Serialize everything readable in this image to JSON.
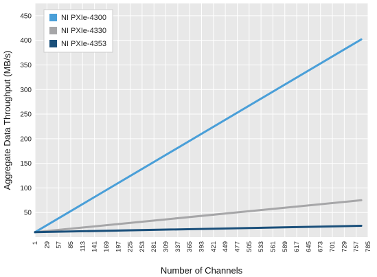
{
  "chart_data": {
    "type": "line",
    "title": "",
    "xlabel": "Number of Channels",
    "ylabel": "Aggregate Data Throughput (MB/s)",
    "x_ticks": [
      1,
      29,
      57,
      85,
      113,
      141,
      169,
      197,
      225,
      253,
      281,
      309,
      337,
      365,
      393,
      421,
      449,
      477,
      505,
      533,
      561,
      589,
      617,
      645,
      673,
      701,
      729,
      757,
      785
    ],
    "y_ticks": [
      50,
      100,
      150,
      200,
      250,
      300,
      350,
      400,
      450
    ],
    "xlim": [
      1,
      785
    ],
    "ylim": [
      0,
      475
    ],
    "grid": {
      "horizontal": true,
      "vertical": true,
      "background": "#e8e8e8"
    },
    "legend_position": "top-left",
    "series": [
      {
        "name": "NI PXIe-4300",
        "color": "#4a9fd8",
        "x": [
          1,
          769
        ],
        "y": [
          10,
          402
        ]
      },
      {
        "name": "NI PXIe-4330",
        "color": "#a6a6a8",
        "x": [
          1,
          769
        ],
        "y": [
          10,
          75
        ]
      },
      {
        "name": "NI PXIe-4353",
        "color": "#1a4f7a",
        "x": [
          1,
          769
        ],
        "y": [
          10,
          23
        ]
      }
    ]
  }
}
